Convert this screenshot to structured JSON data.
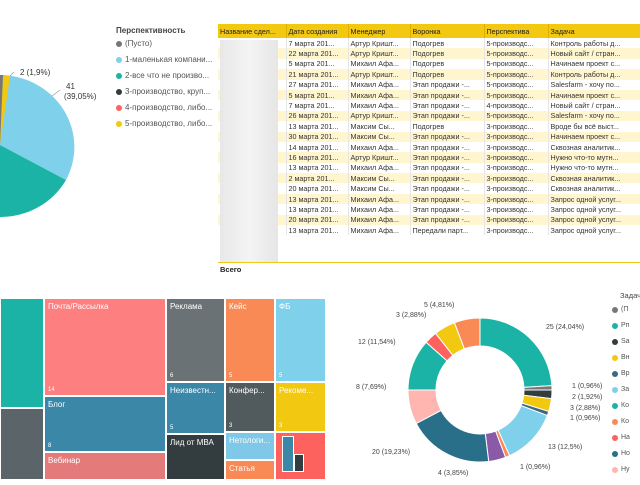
{
  "top_pie": {
    "legend_title": "Перспективность",
    "legend": [
      {
        "label": "(Пусто)",
        "color": "#777777"
      },
      {
        "label": "1-маленькая компани...",
        "color": "#7fd0ea"
      },
      {
        "label": "2-все что не произво...",
        "color": "#1ab3a6"
      },
      {
        "label": "3-производство, круп...",
        "color": "#333c3f"
      },
      {
        "label": "4-производство, либо...",
        "color": "#fd625e"
      },
      {
        "label": "5-производство, либо...",
        "color": "#f2c811"
      }
    ],
    "labels": [
      {
        "text": "2 (1,9%)"
      },
      {
        "text": "41"
      },
      {
        "text": "(39,05%)"
      }
    ]
  },
  "table": {
    "headers": [
      "Название сдел...",
      "Дата создания",
      "Менеджер",
      "Воронка",
      "Перспектива",
      "Задача"
    ],
    "rows": [
      [
        "",
        "7 марта 201...",
        "Артур Кришт...",
        "Подогрев",
        "5-производс...",
        "Контроль работы д..."
      ],
      [
        "",
        "22 марта 201...",
        "Артур Кришт...",
        "Подогрев",
        "5-производс...",
        "Новый сайт / стран..."
      ],
      [
        "",
        "5 марта 201...",
        "Михаил Афа...",
        "Подогрев",
        "5-производс...",
        "Начинаем проект с..."
      ],
      [
        "",
        "21 марта 201...",
        "Артур Кришт...",
        "Подогрев",
        "5-производс...",
        "Контроль работы д..."
      ],
      [
        "",
        "27 марта 201...",
        "Михаил Афа...",
        "Этап продажи -...",
        "5-производс...",
        "Salesfarm - хочу по..."
      ],
      [
        "",
        "5 марта 201...",
        "Михаил Афа...",
        "Этап продажи -...",
        "5-производс...",
        "Начинаем проект с..."
      ],
      [
        "",
        "7 марта 201...",
        "Михаил Афа...",
        "Этап продажи -...",
        "4-производс...",
        "Новый сайт / стран..."
      ],
      [
        "",
        "26 марта 201...",
        "Артур Кришт...",
        "Этап продажи -...",
        "5-производс...",
        "Salesfarm - хочу по..."
      ],
      [
        "",
        "13 марта 201...",
        "Максим Сы...",
        "Подогрев",
        "3-производс...",
        "Вроде бы всё выст..."
      ],
      [
        "",
        "30 марта 201...",
        "Максим Сы...",
        "Этап продажи -...",
        "3-производс...",
        "Начинаем проект с..."
      ],
      [
        "",
        "14 марта 201...",
        "Михаил Афа...",
        "Этап продажи -...",
        "3-производс...",
        "Сквозная аналитик..."
      ],
      [
        "",
        "16 марта 201...",
        "Артур Кришт...",
        "Этап продажи -...",
        "3-производс...",
        "Нужно что-то мутн..."
      ],
      [
        "",
        "13 марта 201...",
        "Михаил Афа...",
        "Этап продажи -...",
        "3-производс...",
        "Нужно что-то мутн..."
      ],
      [
        "",
        "2 марта 201...",
        "Максим Сы...",
        "Этап продажи -...",
        "3-производс...",
        "Сквозная аналитик..."
      ],
      [
        "",
        "20 марта 201...",
        "Максим Сы...",
        "Этап продажи -...",
        "3-производс...",
        "Сквозная аналитик..."
      ],
      [
        "",
        "13 марта 201...",
        "Михаил Афа...",
        "Этап продажи -...",
        "3-производс...",
        "Запрос одной услуг..."
      ],
      [
        "",
        "13 марта 201...",
        "Михаил Афа...",
        "Этап продажи -...",
        "3-производс...",
        "Запрос одной услуг..."
      ],
      [
        "",
        "20 марта 201...",
        "Михаил Афа...",
        "Этап продажи -...",
        "3-производс...",
        "Запрос одной услуг..."
      ],
      [
        "",
        "13 марта 201...",
        "Михаил Афа...",
        "Передали парт...",
        "3-производс...",
        "Запрос одной услуг..."
      ]
    ],
    "total_label": "Всего"
  },
  "treemap": {
    "tiles": [
      {
        "label": "",
        "count": "",
        "color": "#1ab3a6"
      },
      {
        "label": "",
        "count": "",
        "color": "#5b6468"
      },
      {
        "label": "Почта/Рассылка",
        "count": "14",
        "color": "#fd7f7f"
      },
      {
        "label": "Блог",
        "count": "8",
        "color": "#3a87a8"
      },
      {
        "label": "Вебинар",
        "count": "",
        "color": "#e57a7a"
      },
      {
        "label": "Реклама",
        "count": "6",
        "color": "#6b7275"
      },
      {
        "label": "Неизвестн...",
        "count": "5",
        "color": "#3a87a8"
      },
      {
        "label": "Лид от МВА",
        "count": "",
        "color": "#333c3f"
      },
      {
        "label": "Кейс",
        "count": "5",
        "color": "#fa8a55"
      },
      {
        "label": "Конфер...",
        "count": "3",
        "color": "#515a5d"
      },
      {
        "label": "Нетологи...",
        "count": "",
        "color": "#7fc8e8"
      },
      {
        "label": "Статья",
        "count": "",
        "color": "#fa8a55"
      },
      {
        "label": "ФБ",
        "count": "5",
        "color": "#7fd0ea"
      },
      {
        "label": "Рекоме...",
        "count": "3",
        "color": "#f2c811"
      },
      {
        "label": "",
        "count": "",
        "color": "#fd625e"
      },
      {
        "label": "",
        "count": "",
        "color": "#3a87a8"
      },
      {
        "label": "",
        "count": "",
        "color": "#333c3f"
      }
    ]
  },
  "donut": {
    "legend_title": "Задача",
    "legend": [
      {
        "label": "(П",
        "color": "#777777"
      },
      {
        "label": "Рп",
        "color": "#1ab3a6"
      },
      {
        "label": "Sa",
        "color": "#333c3f"
      },
      {
        "label": "Вн",
        "color": "#f2c811"
      },
      {
        "label": "Вр",
        "color": "#3a6a80"
      },
      {
        "label": "За",
        "color": "#7fd0ea"
      },
      {
        "label": "Ко",
        "color": "#1ab3a6"
      },
      {
        "label": "Ко",
        "color": "#fa8a55"
      },
      {
        "label": "На",
        "color": "#fd625e"
      },
      {
        "label": "Но",
        "color": "#2a6f8a"
      },
      {
        "label": "Ну",
        "color": "#ffb6b0"
      }
    ],
    "labels": [
      {
        "text": "25 (24,04%)"
      },
      {
        "text": "1 (0,96%)"
      },
      {
        "text": "2 (1,92%)"
      },
      {
        "text": "3 (2,88%)"
      },
      {
        "text": "1 (0,96%)"
      },
      {
        "text": "13 (12,5%)"
      },
      {
        "text": "1 (0,96%)"
      },
      {
        "text": "4 (3,85%)"
      },
      {
        "text": "20 (19,23%)"
      },
      {
        "text": "8 (7,69%)"
      },
      {
        "text": "12 (11,54%)"
      },
      {
        "text": "3 (2,88%)"
      },
      {
        "text": "5 (4,81%)"
      }
    ]
  }
}
